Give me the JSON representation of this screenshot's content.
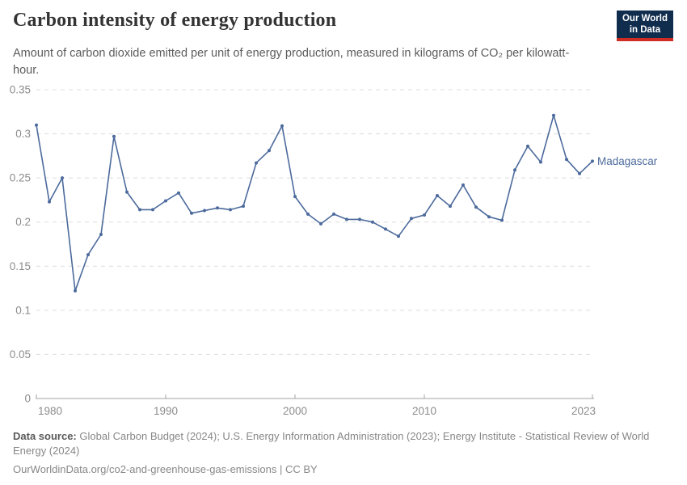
{
  "header": {
    "subtitle": "Amount of carbon dioxide emitted per unit of energy production, measured in kilograms of CO₂ per kilowatt-hour.",
    "logo": {
      "line1": "Our World",
      "line2": "in Data"
    }
  },
  "footer": {
    "source_label": "Data source:",
    "source_text": "Global Carbon Budget (2024); U.S. Energy Information Administration (2023); Energy Institute - Statistical Review of World Energy (2024)",
    "link_text": "OurWorldinData.org/co2-and-greenhouse-gas-emissions | CC BY"
  },
  "colors": {
    "line": "#4c6a9c",
    "grid": "#dcdcdc",
    "axis": "#a3a3a3",
    "tick_label": "#8c8c8c",
    "logo_bg": "#102d4e",
    "logo_red": "#cf2d24"
  },
  "chart_data": {
    "type": "line",
    "title": "Carbon intensity of energy production",
    "ylabel": "kilograms of CO₂ per kilowatt-hour",
    "xlim": [
      1980,
      2023
    ],
    "ylim": [
      0,
      0.35
    ],
    "grid": "horizontal-dashed",
    "legend": "end-of-line-label",
    "x": [
      1980,
      1981,
      1982,
      1983,
      1984,
      1985,
      1986,
      1987,
      1988,
      1989,
      1990,
      1991,
      1992,
      1993,
      1994,
      1995,
      1996,
      1997,
      1998,
      1999,
      2000,
      2001,
      2002,
      2003,
      2004,
      2005,
      2006,
      2007,
      2008,
      2009,
      2010,
      2011,
      2012,
      2013,
      2014,
      2015,
      2016,
      2017,
      2018,
      2019,
      2020,
      2021,
      2022,
      2023
    ],
    "series": [
      {
        "name": "Madagascar",
        "values": [
          0.31,
          0.223,
          0.25,
          0.122,
          0.163,
          0.186,
          0.297,
          0.234,
          0.214,
          0.214,
          0.224,
          0.233,
          0.21,
          0.213,
          0.216,
          0.214,
          0.218,
          0.267,
          0.281,
          0.309,
          0.229,
          0.209,
          0.198,
          0.209,
          0.203,
          0.203,
          0.2,
          0.192,
          0.184,
          0.204,
          0.208,
          0.23,
          0.218,
          0.242,
          0.217,
          0.206,
          0.202,
          0.259,
          0.286,
          0.268,
          0.321,
          0.271,
          0.255,
          0.269
        ]
      }
    ],
    "yticks": [
      {
        "value": 0,
        "label": "0"
      },
      {
        "value": 0.05,
        "label": "0.05"
      },
      {
        "value": 0.1,
        "label": "0.1"
      },
      {
        "value": 0.15,
        "label": "0.15"
      },
      {
        "value": 0.2,
        "label": "0.2"
      },
      {
        "value": 0.25,
        "label": "0.25"
      },
      {
        "value": 0.3,
        "label": "0.3"
      },
      {
        "value": 0.35,
        "label": "0.35"
      }
    ],
    "xticks": [
      {
        "value": 1980,
        "label": "1980",
        "anchor": "start"
      },
      {
        "value": 1990,
        "label": "1990",
        "anchor": "middle"
      },
      {
        "value": 2000,
        "label": "2000",
        "anchor": "middle"
      },
      {
        "value": 2010,
        "label": "2010",
        "anchor": "middle"
      },
      {
        "value": 2023,
        "label": "2023",
        "anchor": "end"
      }
    ]
  }
}
